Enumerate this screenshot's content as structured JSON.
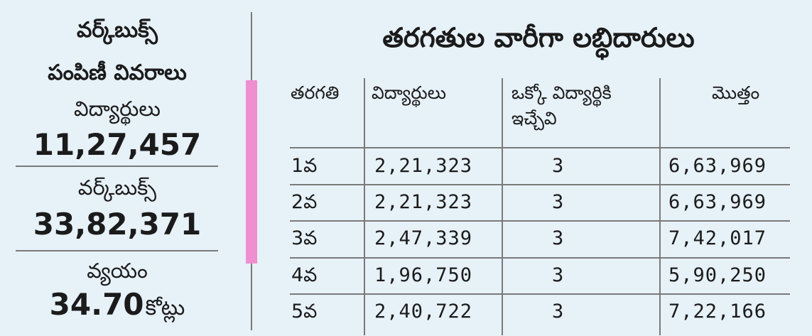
{
  "summary": {
    "title_line1": "వర్క్‌బుక్స్‌",
    "title_line2": "పంపిణీ వివరాలు",
    "students_label": "విద్యార్థులు",
    "students_value": "11,27,457",
    "workbooks_label": "వర్క్‌బుక్స్‌",
    "workbooks_value": "33,82,371",
    "cost_label": "వ్యయం",
    "cost_value": "34.70",
    "cost_unit": "కోట్లు"
  },
  "table": {
    "title": "తరగతుల వారీగా లబ్ధిదారులు",
    "headers": {
      "class": "తరగతి",
      "students": "విద్యార్థులు",
      "per_student_line1": "ఒక్కో విద్యార్థికి",
      "per_student_line2": "ఇచ్చేవి",
      "total": "మొత్తం"
    },
    "rows": [
      {
        "class": "1వ",
        "students": "2,21,323",
        "per_student": "3",
        "total": "6,63,969"
      },
      {
        "class": "2వ",
        "students": "2,21,323",
        "per_student": "3",
        "total": "6,63,969"
      },
      {
        "class": "3వ",
        "students": "2,47,339",
        "per_student": "3",
        "total": "7,42,017"
      },
      {
        "class": "4వ",
        "students": "1,96,750",
        "per_student": "3",
        "total": "5,90,250"
      },
      {
        "class": "5వ",
        "students": "2,40,722",
        "per_student": "3",
        "total": "7,22,166"
      }
    ]
  },
  "colors": {
    "background": "#e7f1f8",
    "accent": "#f08fcf",
    "rule": "#7a7a7a",
    "text": "#1b1b1b"
  }
}
